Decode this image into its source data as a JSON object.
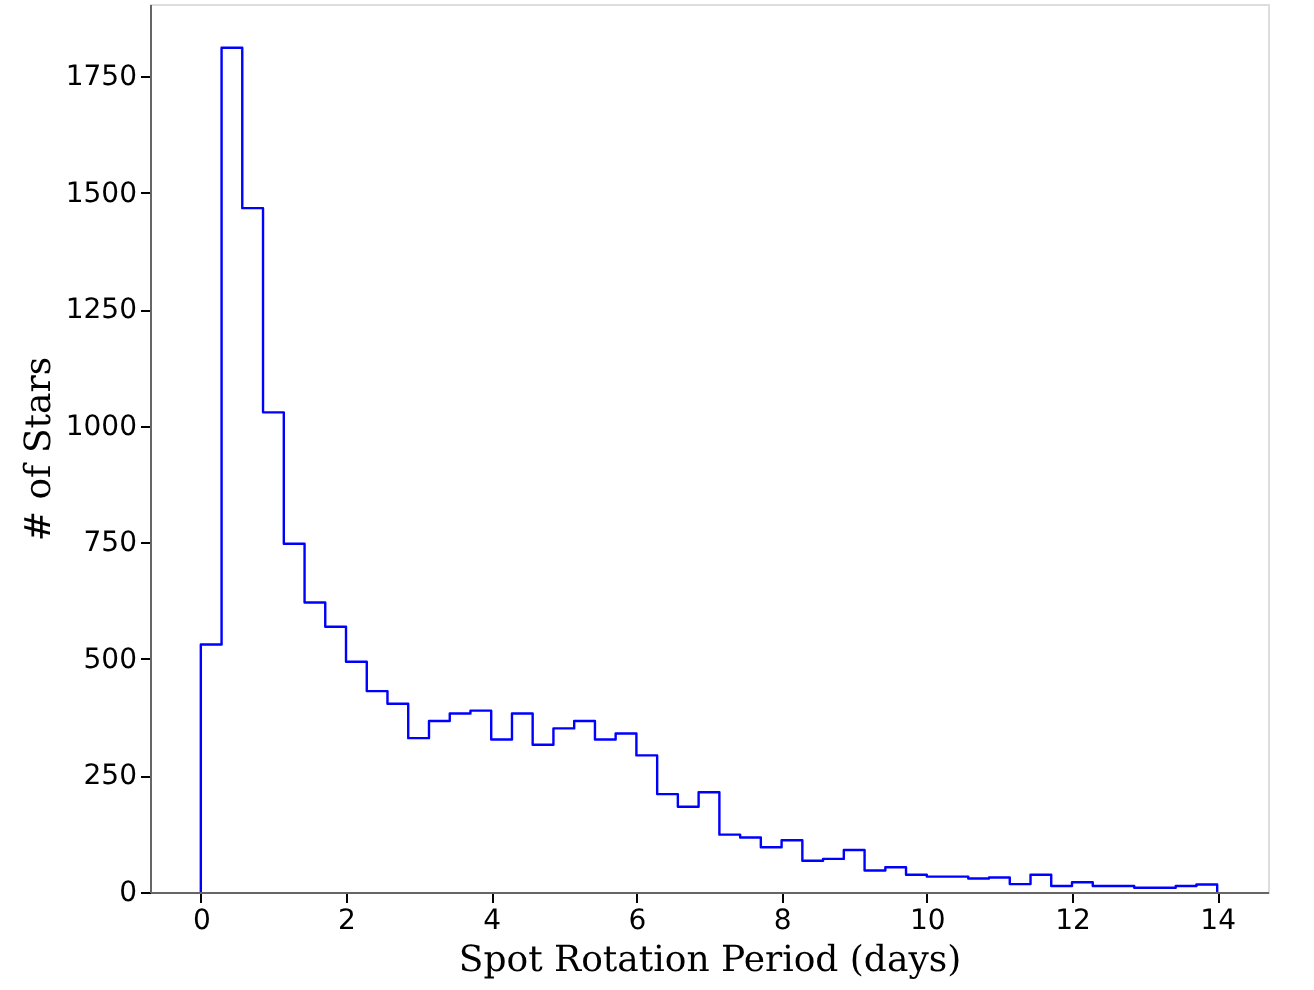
{
  "chart_data": {
    "type": "histogram",
    "xlabel": "Spot Rotation Period (days)",
    "ylabel": "# of Stars",
    "color": "#0000ff",
    "bins": [
      0,
      0.286,
      0.571,
      0.857,
      1.143,
      1.429,
      1.714,
      2.0,
      2.286,
      2.571,
      2.857,
      3.143,
      3.429,
      3.714,
      4.0,
      4.286,
      4.571,
      4.857,
      5.143,
      5.429,
      5.714,
      6.0,
      6.286,
      6.571,
      6.857,
      7.143,
      7.429,
      7.714,
      8.0,
      8.286,
      8.571,
      8.857,
      9.143,
      9.429,
      9.714,
      10.0,
      10.286,
      10.571,
      10.857,
      11.143,
      11.429,
      11.714,
      12.0,
      12.286,
      12.571,
      12.857,
      13.143,
      13.429,
      13.714,
      14.0
    ],
    "values": [
      531,
      1811,
      1467,
      1029,
      747,
      621,
      569,
      494,
      431,
      404,
      330,
      367,
      383,
      389,
      327,
      383,
      316,
      351,
      367,
      327,
      340,
      293,
      210,
      183,
      214,
      123,
      117,
      96,
      111,
      67,
      71,
      90,
      46,
      53,
      37,
      33,
      33,
      29,
      31,
      17,
      37,
      13,
      21,
      13,
      13,
      9,
      9,
      13,
      16
    ],
    "xlim": [
      -0.7,
      14.7
    ],
    "ylim": [
      0,
      1905
    ],
    "xticks": [
      0,
      2,
      4,
      6,
      8,
      10,
      12,
      14
    ],
    "yticks": [
      0,
      250,
      500,
      750,
      1000,
      1250,
      1500,
      1750
    ],
    "grid": false
  }
}
